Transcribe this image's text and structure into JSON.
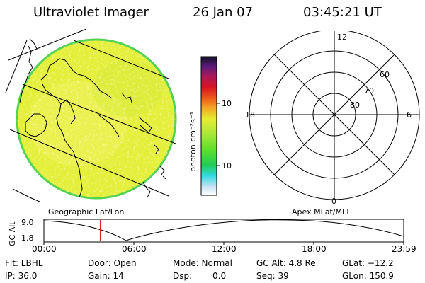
{
  "header": {
    "title": "Ultraviolet Imager",
    "date": "26 Jan 07",
    "time": "03:45:21 UT"
  },
  "colorbar": {
    "unit_label": "photon cm⁻²s⁻¹",
    "tick_labels": [
      "100",
      "10"
    ]
  },
  "polar": {
    "mlt_labels": [
      "12",
      "18",
      "6",
      "0"
    ],
    "lat_labels": [
      "60",
      "70",
      "80"
    ]
  },
  "panel_labels": {
    "left": "Geographic Lat/Lon",
    "right": "Apex MLat/MLT"
  },
  "altitude_plot": {
    "ylabel": "GC Alt",
    "y_ticks": [
      "9.0",
      "1.8"
    ],
    "x_ticks": [
      "00:00",
      "06:00",
      "12:00",
      "18:00",
      "23:59"
    ],
    "current_time_hours": 3.755
  },
  "info": {
    "flt": "Flt: LBHL",
    "ip": "IP: 36.0",
    "door": "Door: Open",
    "gain": "Gain: 14",
    "mode": "Mode: Normal",
    "dsp_label": "Dsp:",
    "dsp_value": "0.0",
    "gc_alt": "GC Alt: 4.8 Re",
    "seq": "Seq: 39",
    "glat": "GLat: −12.2",
    "glon": "GLon: 150.9"
  },
  "colors": {
    "disk_fill": "#e4ef3a",
    "disk_edge": "#4fd24f",
    "time_marker": "#e02020"
  }
}
